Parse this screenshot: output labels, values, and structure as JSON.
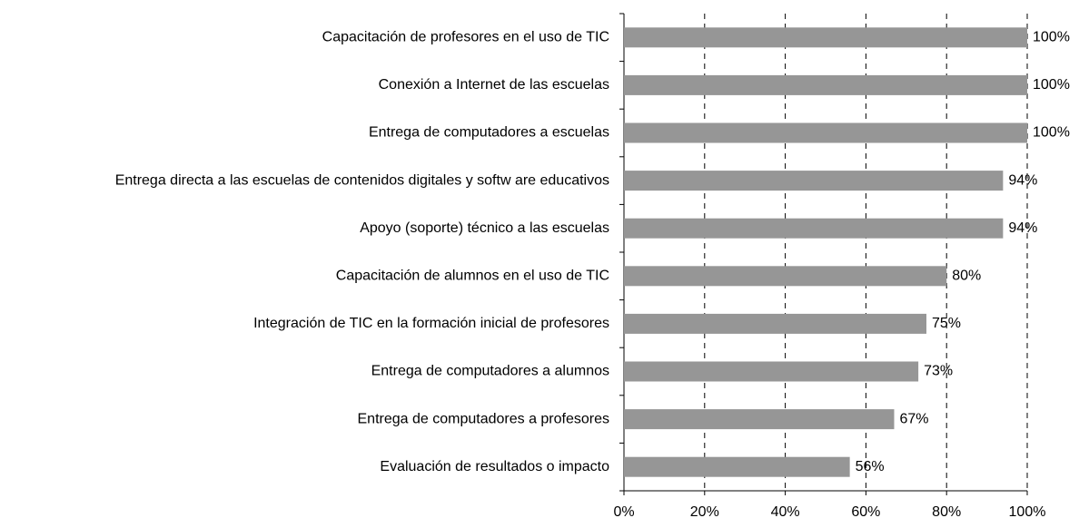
{
  "chart_data": {
    "type": "bar",
    "orientation": "horizontal",
    "categories": [
      "Capacitación de profesores en el uso de TIC",
      "Conexión a Internet de las escuelas",
      "Entrega de computadores a escuelas",
      "Entrega directa a las escuelas de contenidos digitales y softw are educativos",
      "Apoyo (soporte) técnico a las escuelas",
      "Capacitación de alumnos en el uso de TIC",
      "Integración de TIC en la formación inicial de profesores",
      "Entrega de computadores a alumnos",
      "Entrega de computadores a profesores",
      "Evaluación de resultados o impacto"
    ],
    "values": [
      100,
      100,
      100,
      94,
      94,
      80,
      75,
      73,
      67,
      56
    ],
    "value_labels": [
      "100%",
      "100%",
      "100%",
      "94%",
      "94%",
      "80%",
      "75%",
      "73%",
      "67%",
      "56%"
    ],
    "color": "#969696",
    "xlim": [
      0,
      100
    ],
    "xticks": [
      {
        "value": 0,
        "label": "0%"
      },
      {
        "value": 20,
        "label": "20%"
      },
      {
        "value": 40,
        "label": "40%"
      },
      {
        "value": 60,
        "label": "60%"
      },
      {
        "value": 80,
        "label": "80%"
      },
      {
        "value": 100,
        "label": "100%"
      }
    ],
    "grid": true
  }
}
